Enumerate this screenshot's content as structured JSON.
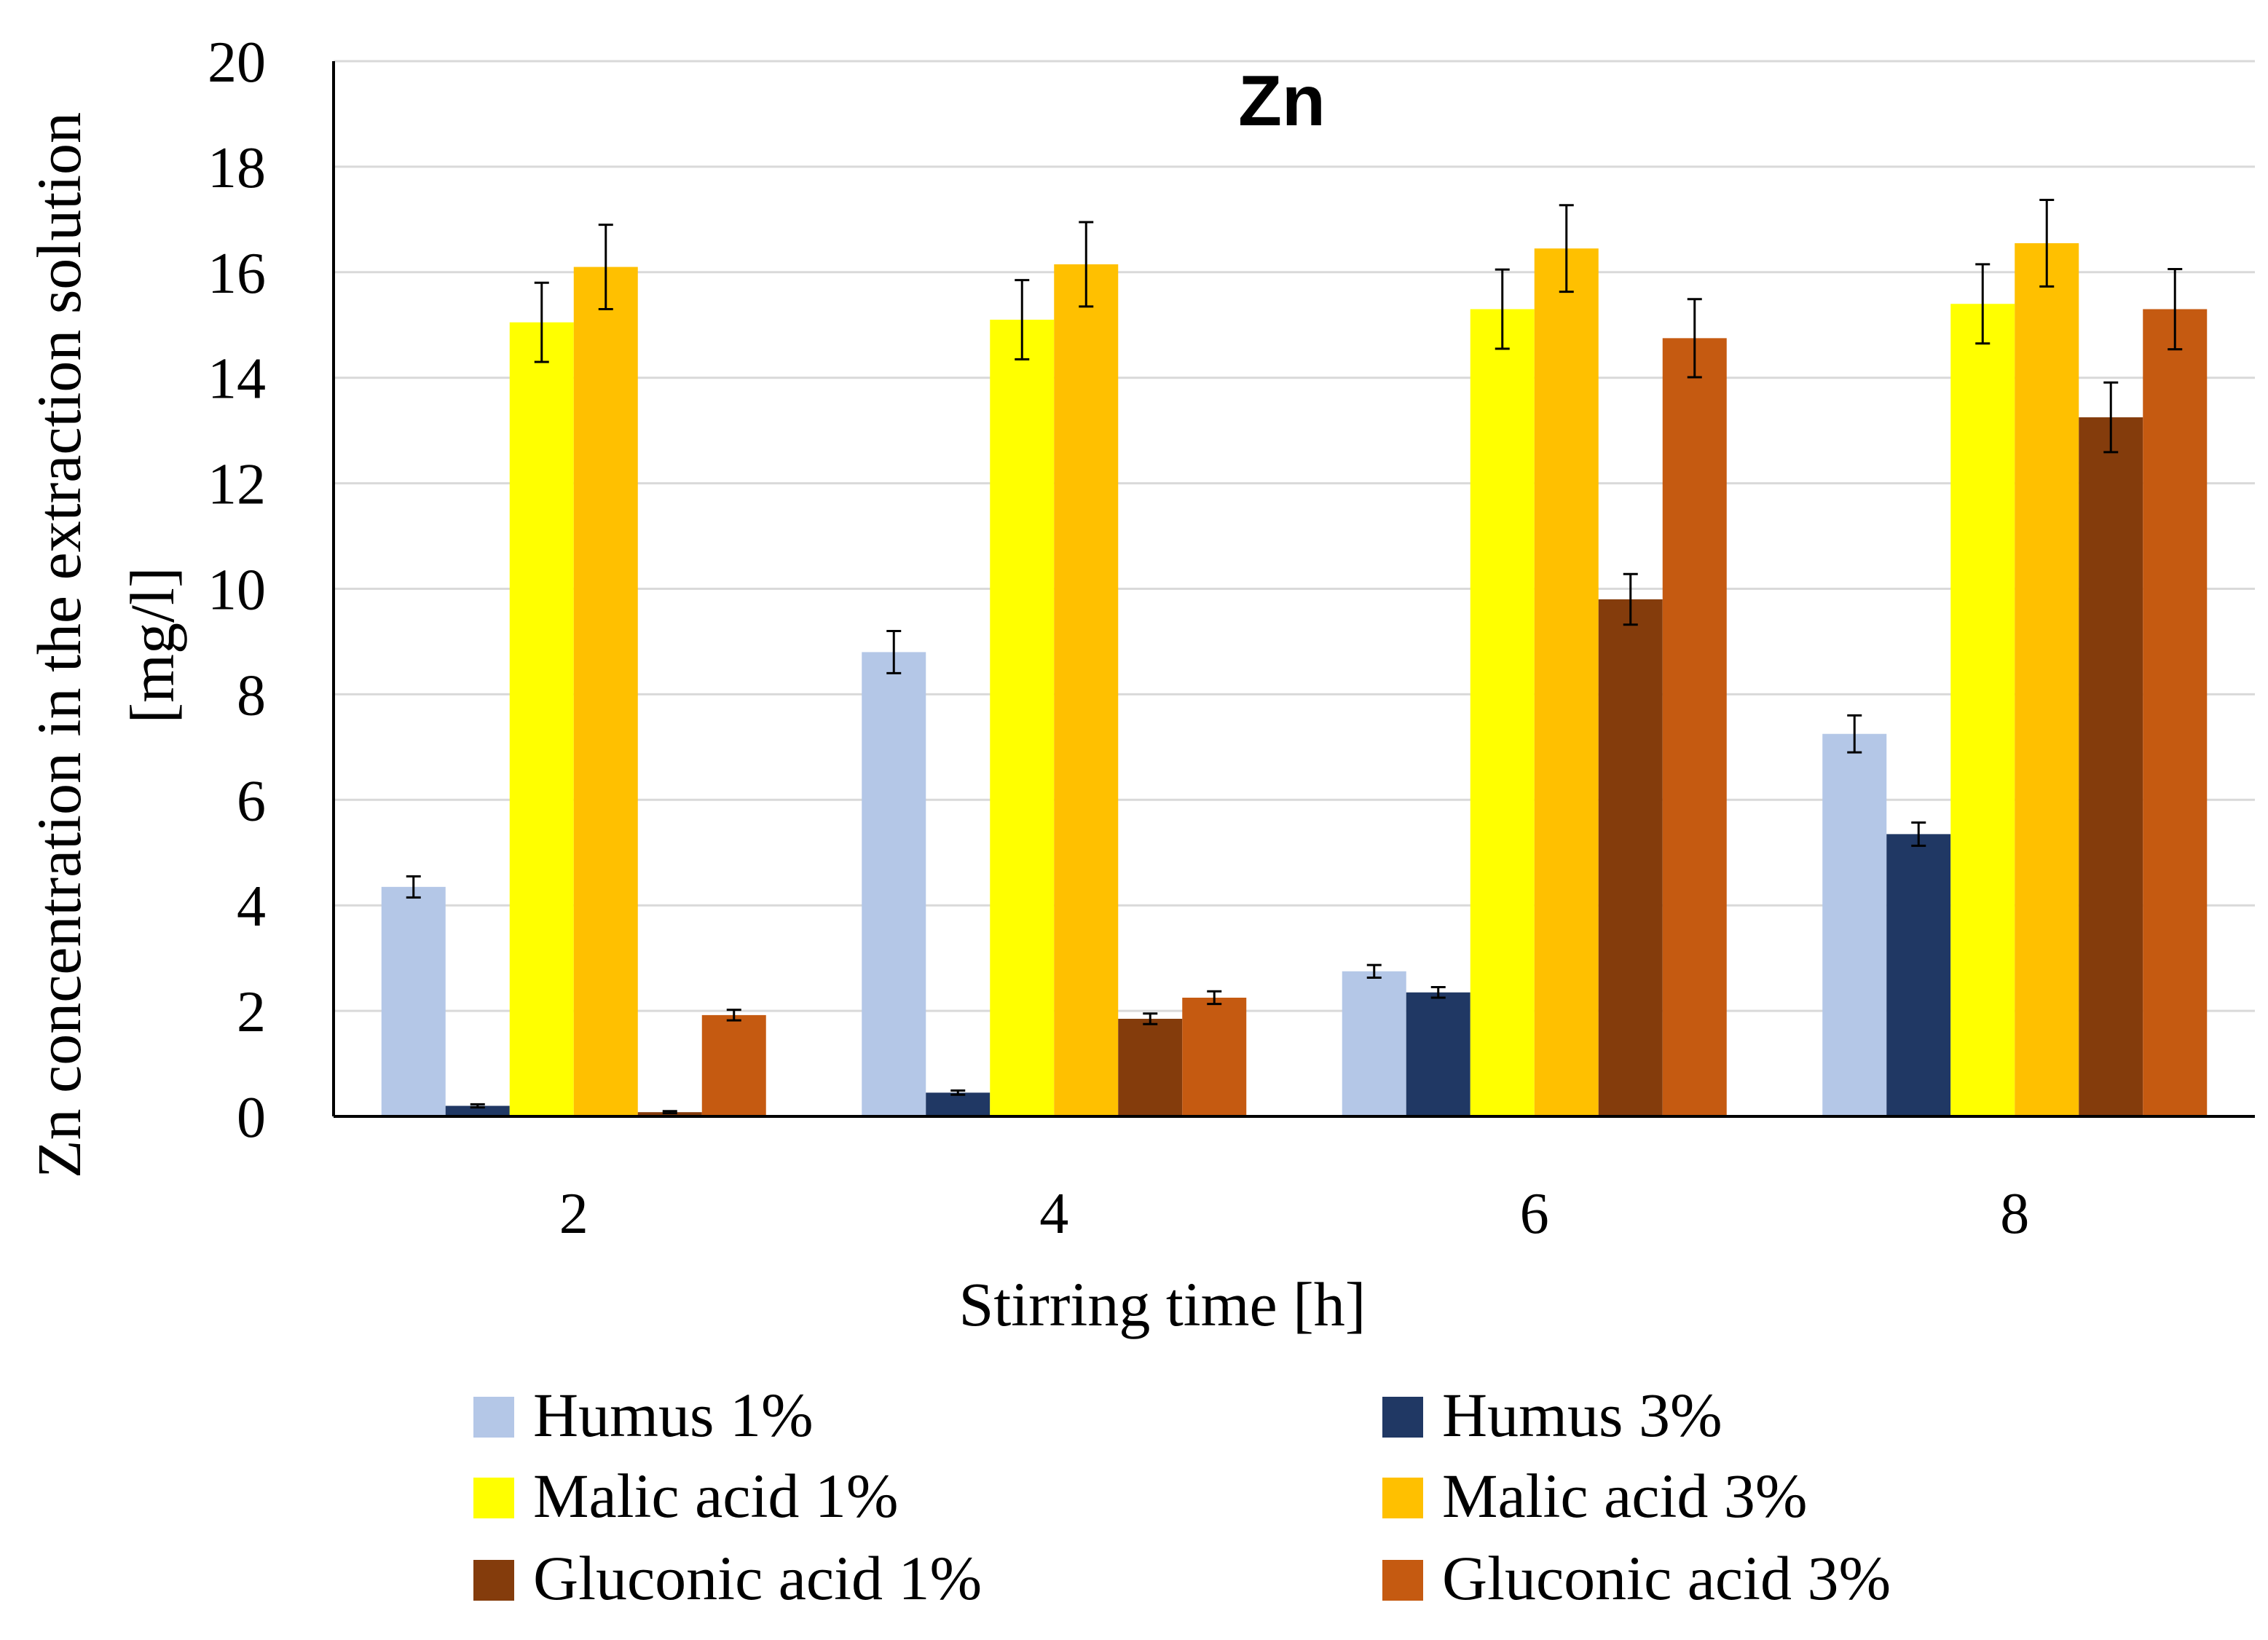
{
  "chart_data": {
    "type": "bar",
    "title": "Zn",
    "xlabel": "Stirring time [h]",
    "ylabel_line1": "Zn concentration in the extraction solution",
    "ylabel_line2": "[mg/l]",
    "categories": [
      "2",
      "4",
      "6",
      "8"
    ],
    "ylim": [
      0,
      20
    ],
    "yticks": [
      0,
      2,
      4,
      6,
      8,
      10,
      12,
      14,
      16,
      18,
      20
    ],
    "ytick_labels": [
      "0",
      "2",
      "4",
      "6",
      "8",
      "10",
      "12",
      "14",
      "16",
      "18",
      "20"
    ],
    "grid": true,
    "legend_position": "bottom",
    "series": [
      {
        "name": "Humus 1%",
        "color": "#b4c7e7",
        "values": [
          4.35,
          8.8,
          2.75,
          7.25
        ],
        "errors": [
          0.2,
          0.4,
          0.12,
          0.35
        ]
      },
      {
        "name": "Humus 3%",
        "color": "#203864",
        "values": [
          0.2,
          0.45,
          2.35,
          5.35
        ],
        "errors": [
          0.03,
          0.04,
          0.1,
          0.22
        ]
      },
      {
        "name": "Malic acid 1%",
        "color": "#ffff00",
        "values": [
          15.05,
          15.1,
          15.3,
          15.4
        ],
        "errors": [
          0.75,
          0.75,
          0.75,
          0.75
        ]
      },
      {
        "name": "Malic acid 3%",
        "color": "#ffc000",
        "values": [
          16.1,
          16.15,
          16.45,
          16.55
        ],
        "errors": [
          0.8,
          0.8,
          0.82,
          0.82
        ]
      },
      {
        "name": "Gluconic acid 1%",
        "color": "#843c0c",
        "values": [
          0.08,
          1.85,
          9.8,
          13.25
        ],
        "errors": [
          0.02,
          0.1,
          0.48,
          0.66
        ]
      },
      {
        "name": "Gluconic acid 3%",
        "color": "#c55a11",
        "values": [
          1.92,
          2.25,
          14.75,
          15.3
        ],
        "errors": [
          0.1,
          0.12,
          0.74,
          0.76
        ]
      }
    ]
  }
}
